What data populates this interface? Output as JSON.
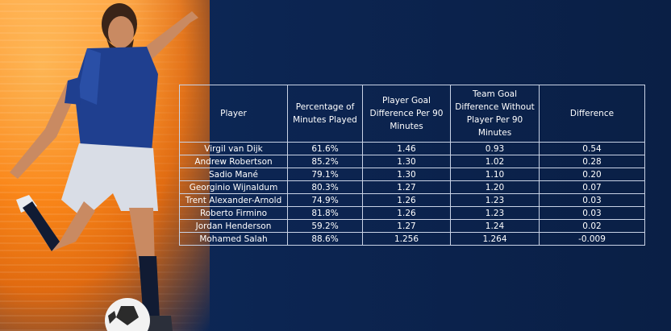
{
  "hero": {
    "alt": "Illustrated footballer kicking a ball"
  },
  "table": {
    "headers": [
      "Player",
      "Percentage of Minutes Played",
      "Player Goal Difference Per 90 Minutes",
      "Team Goal Difference Without Player Per 90 Minutes",
      "Difference"
    ],
    "rows": [
      [
        "Virgil van Dijk",
        "61.6%",
        "1.46",
        "0.93",
        "0.54"
      ],
      [
        "Andrew Robertson",
        "85.2%",
        "1.30",
        "1.02",
        "0.28"
      ],
      [
        "Sadio Mané",
        "79.1%",
        "1.30",
        "1.10",
        "0.20"
      ],
      [
        "Georginio Wijnaldum",
        "80.3%",
        "1.27",
        "1.20",
        "0.07"
      ],
      [
        "Trent Alexander-Arnold",
        "74.9%",
        "1.26",
        "1.23",
        "0.03"
      ],
      [
        "Roberto Firmino",
        "81.8%",
        "1.26",
        "1.23",
        "0.03"
      ],
      [
        "Jordan Henderson",
        "59.2%",
        "1.27",
        "1.24",
        "0.02"
      ],
      [
        "Mohamed Salah",
        "88.6%",
        "1.256",
        "1.264",
        "-0.009"
      ]
    ]
  },
  "colors": {
    "background": "#0c2552",
    "accent_orange": "#ff8c1a",
    "grid": "#c9d3e6",
    "text": "#ffffff"
  }
}
